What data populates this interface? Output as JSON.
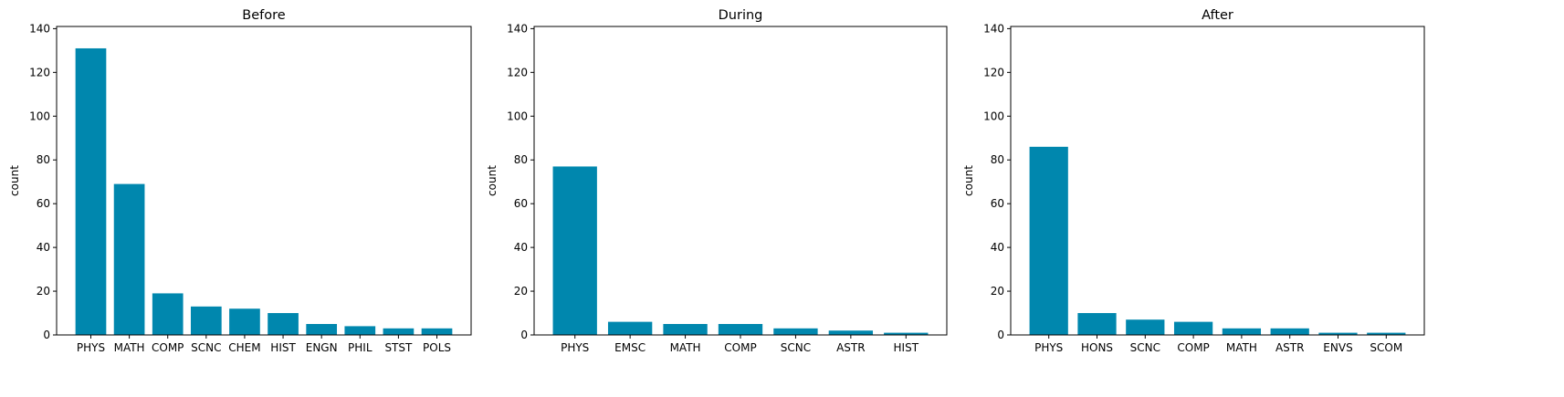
{
  "chart_data": [
    {
      "type": "bar",
      "title": "Before",
      "ylabel": "count",
      "xlabel": "",
      "ylim": [
        0,
        141
      ],
      "yticks": [
        0,
        20,
        40,
        60,
        80,
        100,
        120,
        140
      ],
      "color": "#0087ae",
      "grid": false,
      "categories": [
        "PHYS",
        "MATH",
        "COMP",
        "SCNC",
        "CHEM",
        "HIST",
        "ENGN",
        "PHIL",
        "STST",
        "POLS"
      ],
      "values": [
        131,
        69,
        19,
        13,
        12,
        10,
        5,
        4,
        3,
        3
      ]
    },
    {
      "type": "bar",
      "title": "During",
      "ylabel": "count",
      "xlabel": "",
      "ylim": [
        0,
        141
      ],
      "yticks": [
        0,
        20,
        40,
        60,
        80,
        100,
        120,
        140
      ],
      "color": "#0087ae",
      "grid": false,
      "categories": [
        "PHYS",
        "EMSC",
        "MATH",
        "COMP",
        "SCNC",
        "ASTR",
        "HIST"
      ],
      "values": [
        77,
        6,
        5,
        5,
        3,
        2,
        1
      ]
    },
    {
      "type": "bar",
      "title": "After",
      "ylabel": "count",
      "xlabel": "",
      "ylim": [
        0,
        141
      ],
      "yticks": [
        0,
        20,
        40,
        60,
        80,
        100,
        120,
        140
      ],
      "color": "#0087ae",
      "grid": false,
      "categories": [
        "PHYS",
        "HONS",
        "SCNC",
        "COMP",
        "MATH",
        "ASTR",
        "ENVS",
        "SCOM"
      ],
      "values": [
        86,
        10,
        7,
        6,
        3,
        3,
        1,
        1
      ]
    }
  ]
}
